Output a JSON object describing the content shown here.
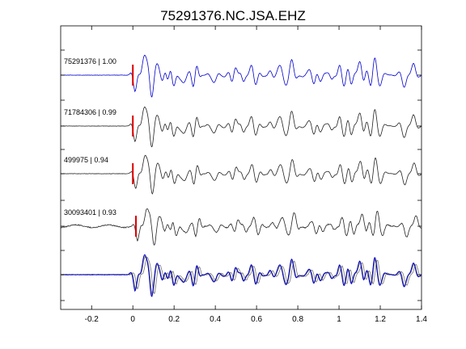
{
  "chart_data": {
    "type": "line",
    "title": "75291376.NC.JSA.EHZ",
    "xlabel": "",
    "ylabel": "",
    "xlim": [
      -0.35,
      1.4
    ],
    "xticks": [
      {
        "value": -0.2,
        "label": "-0.2"
      },
      {
        "value": 0,
        "label": "0"
      },
      {
        "value": 0.2,
        "label": "0.2"
      },
      {
        "value": 0.4,
        "label": "0.4"
      },
      {
        "value": 0.6,
        "label": "0.6"
      },
      {
        "value": 0.8,
        "label": "0.8"
      },
      {
        "value": 1,
        "label": "1"
      },
      {
        "value": 1.2,
        "label": "1.2"
      },
      {
        "value": 1.4,
        "label": "1.4"
      }
    ],
    "grid": false,
    "legend": "none",
    "colors": {
      "master": "#0000cc",
      "trace": "#222222",
      "overlay": "#777777",
      "pick": "#dd0000"
    },
    "traces": [
      {
        "label": "75291376 | 1.00",
        "pick_time": 0.0,
        "shift": 0.0,
        "color": "master"
      },
      {
        "label": "71784306 | 0.99",
        "pick_time": 0.0,
        "shift": 0.0,
        "color": "trace"
      },
      {
        "label": "499975 | 0.94",
        "pick_time": 0.0,
        "shift": 0.003,
        "color": "trace"
      },
      {
        "label": "30093401 | 0.93",
        "pick_time": 0.015,
        "shift": 0.012,
        "color": "trace"
      }
    ],
    "stack": {
      "label": "",
      "includes_master": true
    }
  }
}
